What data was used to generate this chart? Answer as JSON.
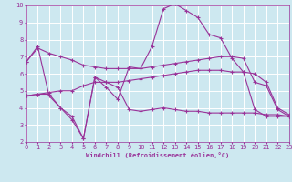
{
  "background_color": "#cde8f0",
  "grid_color": "#ffffff",
  "line_color": "#993399",
  "xlabel": "Windchill (Refroidissement éolien,°C)",
  "xlim": [
    0,
    23
  ],
  "ylim": [
    2,
    10
  ],
  "xticks": [
    0,
    1,
    2,
    3,
    4,
    5,
    6,
    7,
    8,
    9,
    10,
    11,
    12,
    13,
    14,
    15,
    16,
    17,
    18,
    19,
    20,
    21,
    22,
    23
  ],
  "yticks": [
    2,
    3,
    4,
    5,
    6,
    7,
    8,
    9,
    10
  ],
  "series": [
    {
      "x": [
        0,
        1,
        2,
        3,
        4,
        5,
        6,
        7,
        8,
        9,
        10,
        11,
        12,
        13,
        14,
        15,
        16,
        17,
        18,
        19,
        20,
        21,
        22,
        23
      ],
      "y": [
        6.7,
        7.6,
        4.7,
        4.0,
        3.3,
        2.2,
        5.8,
        5.2,
        4.5,
        6.4,
        6.3,
        7.6,
        9.8,
        10.1,
        9.7,
        9.3,
        8.3,
        8.1,
        6.9,
        6.1,
        3.9,
        3.5,
        3.5,
        3.5
      ]
    },
    {
      "x": [
        0,
        1,
        2,
        3,
        4,
        5,
        6,
        7,
        8,
        9,
        10,
        11,
        12,
        13,
        14,
        15,
        16,
        17,
        18,
        19,
        20,
        21,
        22,
        23
      ],
      "y": [
        6.7,
        7.5,
        7.2,
        7.0,
        6.8,
        6.5,
        6.4,
        6.3,
        6.3,
        6.3,
        6.3,
        6.4,
        6.5,
        6.6,
        6.7,
        6.8,
        6.9,
        7.0,
        7.0,
        6.9,
        5.5,
        5.3,
        3.9,
        3.5
      ]
    },
    {
      "x": [
        0,
        1,
        2,
        3,
        4,
        5,
        6,
        7,
        8,
        9,
        10,
        11,
        12,
        13,
        14,
        15,
        16,
        17,
        18,
        19,
        20,
        21,
        22,
        23
      ],
      "y": [
        4.7,
        4.8,
        4.9,
        5.0,
        5.0,
        5.3,
        5.5,
        5.5,
        5.5,
        5.6,
        5.7,
        5.8,
        5.9,
        6.0,
        6.1,
        6.2,
        6.2,
        6.2,
        6.1,
        6.1,
        6.0,
        5.5,
        4.0,
        3.6
      ]
    },
    {
      "x": [
        0,
        1,
        2,
        3,
        4,
        5,
        6,
        7,
        8,
        9,
        10,
        11,
        12,
        13,
        14,
        15,
        16,
        17,
        18,
        19,
        20,
        21,
        22,
        23
      ],
      "y": [
        4.7,
        4.8,
        4.8,
        4.0,
        3.5,
        2.2,
        5.8,
        5.5,
        5.2,
        3.9,
        3.8,
        3.9,
        4.0,
        3.9,
        3.8,
        3.8,
        3.7,
        3.7,
        3.7,
        3.7,
        3.7,
        3.6,
        3.6,
        3.5
      ]
    }
  ]
}
